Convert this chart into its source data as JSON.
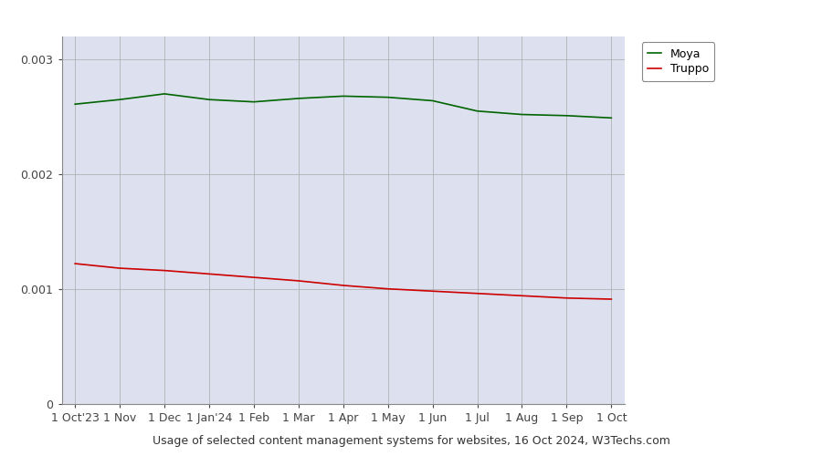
{
  "title": "Usage of selected content management systems for websites, 16 Oct 2024, W3Techs.com",
  "moya_label": "Moya",
  "truppo_label": "Truppo",
  "moya_color": "#006400",
  "truppo_color": "#cc0000",
  "background_color": "#dce0ef",
  "outer_background": "#ffffff",
  "x_tick_labels": [
    "1 Oct'23",
    "1 Nov",
    "1 Dec",
    "1 Jan'24",
    "1 Feb",
    "1 Mar",
    "1 Apr",
    "1 May",
    "1 Jun",
    "1 Jul",
    "1 Aug",
    "1 Sep",
    "1 Oct"
  ],
  "moya_values": [
    0.00261,
    0.00265,
    0.0027,
    0.00265,
    0.00263,
    0.00266,
    0.00268,
    0.00267,
    0.00264,
    0.00255,
    0.00252,
    0.00251,
    0.00249
  ],
  "truppo_values": [
    0.00122,
    0.00118,
    0.00116,
    0.00113,
    0.0011,
    0.00107,
    0.00103,
    0.001,
    0.00098,
    0.00096,
    0.00094,
    0.00092,
    0.00091
  ],
  "ylim": [
    0,
    0.0032
  ],
  "yticks": [
    0,
    0.001,
    0.002,
    0.003
  ],
  "ytick_labels": [
    "0",
    "0.001",
    "0.002",
    "0.003"
  ],
  "line_width": 1.2,
  "grid_color": "#aaaaaa",
  "grid_linewidth": 0.5,
  "tick_fontsize": 9,
  "title_fontsize": 9,
  "legend_fontsize": 9
}
